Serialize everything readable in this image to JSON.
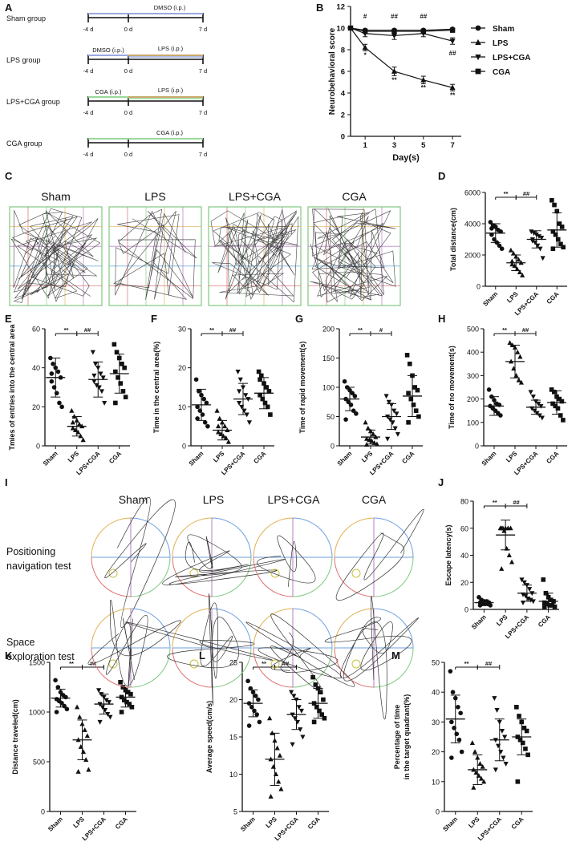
{
  "panel_letters": [
    "A",
    "B",
    "C",
    "D",
    "E",
    "F",
    "G",
    "H",
    "I",
    "J",
    "K",
    "L",
    "M"
  ],
  "panel_A": {
    "rows": [
      {
        "group": "Sham group",
        "treat": "DMSO (i.p.)",
        "lps": ""
      },
      {
        "group": "LPS group",
        "treat": "DMSO (i.p.)",
        "lps": "LPS (i.p.)"
      },
      {
        "group": "LPS+CGA group",
        "treat": "CGA (i.p.)",
        "lps": "LPS (i.p.)"
      },
      {
        "group": "CGA group",
        "treat": "CGA (i.p.)",
        "lps": ""
      }
    ],
    "ticks": [
      "-4 d",
      "0 d",
      "7 d"
    ],
    "colors": {
      "dmso": "#9aa8e0",
      "lps": "#c9a86a",
      "cga": "#9ad89a"
    }
  },
  "groups": [
    "Sham",
    "LPS",
    "LPS+CGA",
    "CGA"
  ],
  "marker_shapes": [
    "circle",
    "triangle-up",
    "triangle-down",
    "square"
  ],
  "trajectory_labels": [
    "Sham",
    "LPS",
    "LPS+CGA",
    "CGA"
  ],
  "maze_row_labels": [
    [
      "Positioning",
      "navigation test"
    ],
    [
      "Space",
      "exploration test"
    ]
  ],
  "chart_data": [
    {
      "panel": "B",
      "type": "line",
      "x": [
        0,
        1,
        3,
        5,
        7
      ],
      "xticks": [
        1,
        3,
        5,
        7
      ],
      "xlabel": "Day(s)",
      "ylabel": "Neurobehavioral score",
      "ylim": [
        0,
        12
      ],
      "yticks": [
        0,
        2,
        4,
        6,
        8,
        10,
        12
      ],
      "series": [
        {
          "name": "Sham",
          "marker": "circle",
          "values": [
            10,
            9.8,
            9.8,
            9.8,
            9.9
          ],
          "err": [
            0,
            0.1,
            0.1,
            0.1,
            0.1
          ]
        },
        {
          "name": "LPS",
          "marker": "triangle-up",
          "values": [
            10,
            8.2,
            6.0,
            5.2,
            4.5
          ],
          "err": [
            0,
            0.3,
            0.4,
            0.35,
            0.3
          ]
        },
        {
          "name": "LPS+CGA",
          "marker": "triangle-down",
          "values": [
            10,
            9.5,
            9.3,
            9.5,
            8.8
          ],
          "err": [
            0,
            0.3,
            0.35,
            0.3,
            0.3
          ]
        },
        {
          "name": "CGA",
          "marker": "square",
          "values": [
            10,
            9.7,
            9.7,
            9.7,
            9.8
          ],
          "err": [
            0,
            0.15,
            0.15,
            0.15,
            0.1
          ]
        }
      ],
      "annotations": [
        {
          "x": 1,
          "y": 10.9,
          "text": "#"
        },
        {
          "x": 3,
          "y": 10.9,
          "text": "##"
        },
        {
          "x": 5,
          "y": 10.9,
          "text": "##"
        },
        {
          "x": 7,
          "y": 7.5,
          "text": "##"
        },
        {
          "x": 1,
          "y": 7.3,
          "text": "*"
        },
        {
          "x": 3,
          "y": 5.0,
          "text": "**"
        },
        {
          "x": 5,
          "y": 4.3,
          "text": "**"
        },
        {
          "x": 7,
          "y": 3.6,
          "text": "**"
        }
      ],
      "legend": "right"
    },
    {
      "panel": "D",
      "type": "scatter",
      "ylabel": "Total distance(cm)",
      "ylim": [
        0,
        6000
      ],
      "yticks": [
        0,
        2000,
        4000,
        6000
      ],
      "categories": [
        "Sham",
        "LPS",
        "LPS+CGA",
        "CGA"
      ],
      "means": [
        3400,
        1500,
        3000,
        3600
      ],
      "sds": [
        600,
        500,
        550,
        1100
      ],
      "points": [
        [
          4100,
          3900,
          3800,
          3600,
          3500,
          3300,
          3000,
          2800,
          2600,
          2400,
          3700
        ],
        [
          2300,
          2100,
          1900,
          1700,
          1500,
          1400,
          1300,
          1100,
          900,
          700,
          1600
        ],
        [
          3500,
          3400,
          3300,
          3200,
          3100,
          2900,
          2800,
          2600,
          2400,
          1800,
          3000
        ],
        [
          5500,
          5200,
          4800,
          4000,
          3800,
          3500,
          3300,
          3000,
          2700,
          2500,
          2400
        ]
      ],
      "sig": [
        {
          "from": 0,
          "to": 1,
          "text": "**"
        },
        {
          "from": 1,
          "to": 2,
          "text": "##"
        }
      ]
    },
    {
      "panel": "E",
      "type": "scatter",
      "ylabel": "Tmies of entries into the central area",
      "ylim": [
        0,
        60
      ],
      "yticks": [
        0,
        20,
        40,
        60
      ],
      "categories": [
        "Sham",
        "LPS",
        "LPS+CGA",
        "CGA"
      ],
      "means": [
        35,
        10,
        34,
        37
      ],
      "sds": [
        10,
        5,
        9,
        10
      ],
      "points": [
        [
          45,
          42,
          40,
          38,
          35,
          33,
          30,
          27,
          22,
          20,
          37
        ],
        [
          18,
          15,
          13,
          11,
          10,
          9,
          8,
          7,
          5,
          3,
          12
        ],
        [
          48,
          42,
          40,
          37,
          35,
          33,
          31,
          30,
          28,
          22,
          36
        ],
        [
          52,
          48,
          45,
          42,
          40,
          38,
          35,
          32,
          28,
          25,
          22
        ]
      ],
      "sig": [
        {
          "from": 0,
          "to": 1,
          "text": "**"
        },
        {
          "from": 1,
          "to": 2,
          "text": "##"
        }
      ]
    },
    {
      "panel": "F",
      "type": "scatter",
      "ylabel": "Time in the central area(%)",
      "ylim": [
        0,
        30
      ],
      "yticks": [
        0,
        10,
        20,
        30
      ],
      "categories": [
        "Sham",
        "LPS",
        "LPS+CGA",
        "CGA"
      ],
      "means": [
        10.5,
        4,
        12,
        13.5
      ],
      "sds": [
        4,
        2.5,
        4,
        4
      ],
      "points": [
        [
          17,
          14,
          13,
          12,
          11,
          10,
          9,
          8,
          6,
          5,
          7
        ],
        [
          9,
          7,
          6,
          5,
          4,
          3.5,
          3,
          2.5,
          2,
          1,
          5
        ],
        [
          19,
          17,
          15,
          13,
          12,
          11,
          10,
          9,
          8,
          6,
          14
        ],
        [
          19,
          18,
          16,
          15,
          14,
          13,
          12,
          11,
          10,
          8,
          17
        ]
      ],
      "sig": [
        {
          "from": 0,
          "to": 1,
          "text": "**"
        },
        {
          "from": 1,
          "to": 2,
          "text": "##"
        }
      ]
    },
    {
      "panel": "G",
      "type": "scatter",
      "ylabel": "Time of rapid movement(s)",
      "ylim": [
        0,
        200
      ],
      "yticks": [
        0,
        50,
        100,
        150,
        200
      ],
      "categories": [
        "Sham",
        "LPS",
        "LPS+CGA",
        "CGA"
      ],
      "means": [
        80,
        15,
        50,
        85
      ],
      "sds": [
        20,
        12,
        22,
        35
      ],
      "points": [
        [
          110,
          100,
          95,
          90,
          85,
          80,
          75,
          70,
          60,
          55,
          45
        ],
        [
          40,
          30,
          25,
          20,
          15,
          12,
          10,
          8,
          5,
          3,
          2
        ],
        [
          85,
          75,
          70,
          60,
          55,
          50,
          45,
          40,
          30,
          20,
          12
        ],
        [
          155,
          140,
          120,
          100,
          95,
          90,
          80,
          70,
          60,
          50,
          40
        ]
      ],
      "sig": [
        {
          "from": 0,
          "to": 1,
          "text": "**"
        },
        {
          "from": 1,
          "to": 2,
          "text": "#"
        }
      ]
    },
    {
      "panel": "H",
      "type": "scatter",
      "ylabel": "Time of no movement(s)",
      "ylim": [
        0,
        500
      ],
      "yticks": [
        0,
        100,
        200,
        300,
        400,
        500
      ],
      "categories": [
        "Sham",
        "LPS",
        "LPS+CGA",
        "CGA"
      ],
      "means": [
        170,
        360,
        165,
        185
      ],
      "sds": [
        40,
        70,
        30,
        50
      ],
      "points": [
        [
          240,
          210,
          195,
          180,
          175,
          170,
          160,
          150,
          140,
          130
        ],
        [
          440,
          430,
          420,
          400,
          380,
          360,
          330,
          300,
          280,
          270
        ],
        [
          230,
          210,
          190,
          180,
          170,
          160,
          150,
          140,
          130,
          120
        ],
        [
          240,
          230,
          210,
          200,
          190,
          180,
          170,
          160,
          130,
          110
        ]
      ],
      "sig": [
        {
          "from": 0,
          "to": 1,
          "text": "**"
        },
        {
          "from": 1,
          "to": 2,
          "text": "##"
        }
      ]
    },
    {
      "panel": "J",
      "type": "scatter",
      "ylabel": "Escape latency(s)",
      "ylim": [
        0,
        80
      ],
      "yticks": [
        0,
        20,
        40,
        60,
        80
      ],
      "categories": [
        "Sham",
        "LPS",
        "LPS+CGA",
        "CGA"
      ],
      "means": [
        5,
        55,
        12,
        6
      ],
      "sds": [
        2,
        11,
        6,
        6
      ],
      "points": [
        [
          9,
          7,
          6,
          6,
          5,
          5,
          4,
          4,
          4,
          3,
          3
        ],
        [
          60,
          60,
          60,
          60,
          60,
          60,
          58,
          45,
          40,
          35,
          30
        ],
        [
          22,
          20,
          18,
          15,
          12,
          11,
          10,
          8,
          7,
          6,
          5
        ],
        [
          22,
          12,
          9,
          7,
          6,
          5,
          4,
          3,
          3,
          2,
          2
        ]
      ],
      "sig": [
        {
          "from": 0,
          "to": 1,
          "text": "**"
        },
        {
          "from": 1,
          "to": 2,
          "text": "##"
        }
      ]
    },
    {
      "panel": "K",
      "type": "scatter",
      "ylabel": "Distance traveled(cm)",
      "ylim": [
        0,
        1500
      ],
      "yticks": [
        0,
        500,
        1000,
        1500
      ],
      "categories": [
        "Sham",
        "LPS",
        "LPS+CGA",
        "CGA"
      ],
      "means": [
        1140,
        720,
        1080,
        1150
      ],
      "sds": [
        90,
        200,
        100,
        100
      ],
      "points": [
        [
          1320,
          1250,
          1200,
          1170,
          1150,
          1130,
          1110,
          1090,
          1060,
          1030,
          1000
        ],
        [
          1050,
          950,
          880,
          820,
          760,
          720,
          650,
          600,
          520,
          420,
          400
        ],
        [
          1220,
          1180,
          1150,
          1120,
          1100,
          1080,
          1050,
          1020,
          980,
          950,
          900
        ],
        [
          1300,
          1250,
          1220,
          1200,
          1180,
          1150,
          1120,
          1100,
          1080,
          1050,
          1000
        ]
      ],
      "sig": [
        {
          "from": 0,
          "to": 1,
          "text": "**"
        },
        {
          "from": 1,
          "to": 2,
          "text": "##"
        }
      ]
    },
    {
      "panel": "L",
      "type": "scatter",
      "ylabel": "Average speed(cm/s)",
      "ylim": [
        5,
        25
      ],
      "yticks": [
        5,
        10,
        15,
        20,
        25
      ],
      "categories": [
        "Sham",
        "LPS",
        "LPS+CGA",
        "CGA"
      ],
      "means": [
        19.5,
        12,
        18,
        19.5
      ],
      "sds": [
        1.8,
        3.5,
        2,
        2
      ],
      "points": [
        [
          22.5,
          21.5,
          21,
          20.5,
          20,
          19.5,
          19,
          18.5,
          18,
          17,
          16.5
        ],
        [
          17.5,
          15.5,
          14.5,
          13.5,
          12.5,
          12,
          11,
          10,
          9,
          8,
          7
        ],
        [
          21,
          20.5,
          20,
          19,
          18.5,
          18,
          17.5,
          17,
          16,
          15,
          14
        ],
        [
          23,
          22,
          21.5,
          21,
          20,
          19.5,
          19,
          18.5,
          18,
          17.5,
          17
        ]
      ],
      "sig": [
        {
          "from": 0,
          "to": 1,
          "text": "**"
        },
        {
          "from": 1,
          "to": 2,
          "text": "##"
        }
      ]
    },
    {
      "panel": "M",
      "type": "scatter",
      "ylabel": "Percentage of time",
      "ylabel2": "in the target quadrant(%)",
      "ylim": [
        0,
        50
      ],
      "yticks": [
        0,
        10,
        20,
        30,
        40,
        50
      ],
      "categories": [
        "Sham",
        "LPS",
        "LPS+CGA",
        "CGA"
      ],
      "means": [
        31,
        14,
        24,
        25
      ],
      "sds": [
        8,
        5,
        7,
        6
      ],
      "points": [
        [
          47,
          40,
          38,
          35,
          33,
          30,
          28,
          26,
          24,
          20,
          18
        ],
        [
          23,
          20,
          18,
          16,
          15,
          14,
          13,
          12,
          11,
          10,
          8
        ],
        [
          38,
          34,
          30,
          27,
          25,
          24,
          22,
          20,
          18,
          16,
          14
        ],
        [
          35,
          32,
          30,
          28,
          27,
          25,
          24,
          23,
          21,
          19,
          10
        ]
      ],
      "sig": [
        {
          "from": 0,
          "to": 1,
          "text": "**"
        },
        {
          "from": 1,
          "to": 2,
          "text": "##"
        }
      ]
    }
  ]
}
